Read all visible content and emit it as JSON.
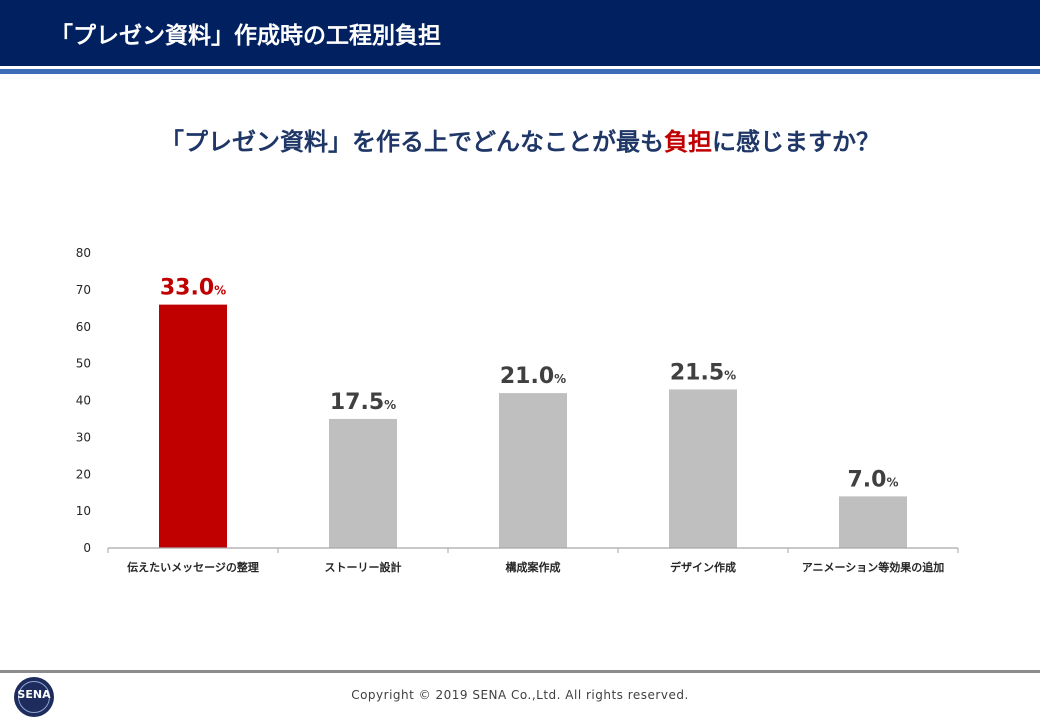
{
  "header": {
    "title": "「プレゼン資料」作成時の工程別負担"
  },
  "question": {
    "before": "「プレゼン資料」を作る上でどんなことが最も",
    "accent": "負担",
    "after": "に感じますか？"
  },
  "chart_data": {
    "type": "bar",
    "title": "「プレゼン資料」を作る上でどんなことが最も負担に感じますか？",
    "categories": [
      "伝えたいメッセージの整理",
      "ストーリー設計",
      "構成案作成",
      "デザイン作成",
      "アニメーション等効果の追加"
    ],
    "values": [
      33.0,
      17.5,
      21.0,
      21.5,
      7.0
    ],
    "value_labels": [
      "33.0",
      "17.5",
      "21.0",
      "21.5",
      "7.0"
    ],
    "unit": "%",
    "highlight_index": 0,
    "colors": {
      "highlight": "#c00000",
      "default": "#bfbfbf",
      "highlight_label": "#c00000",
      "default_label": "#404040"
    },
    "yticks": [
      0,
      10,
      20,
      30,
      40,
      50,
      60,
      70,
      80
    ],
    "ylim": [
      0,
      80
    ],
    "xlabel": "",
    "ylabel": "",
    "grid": false,
    "legend": "none"
  },
  "footer": {
    "copyright": "Copyright © 2019 SENA Co.,Ltd. All rights reserved.",
    "logo_text": "SENA"
  },
  "colors": {
    "header_bg": "#00205f",
    "header_rule": "#3b6db8",
    "question_text": "#1f3767"
  }
}
